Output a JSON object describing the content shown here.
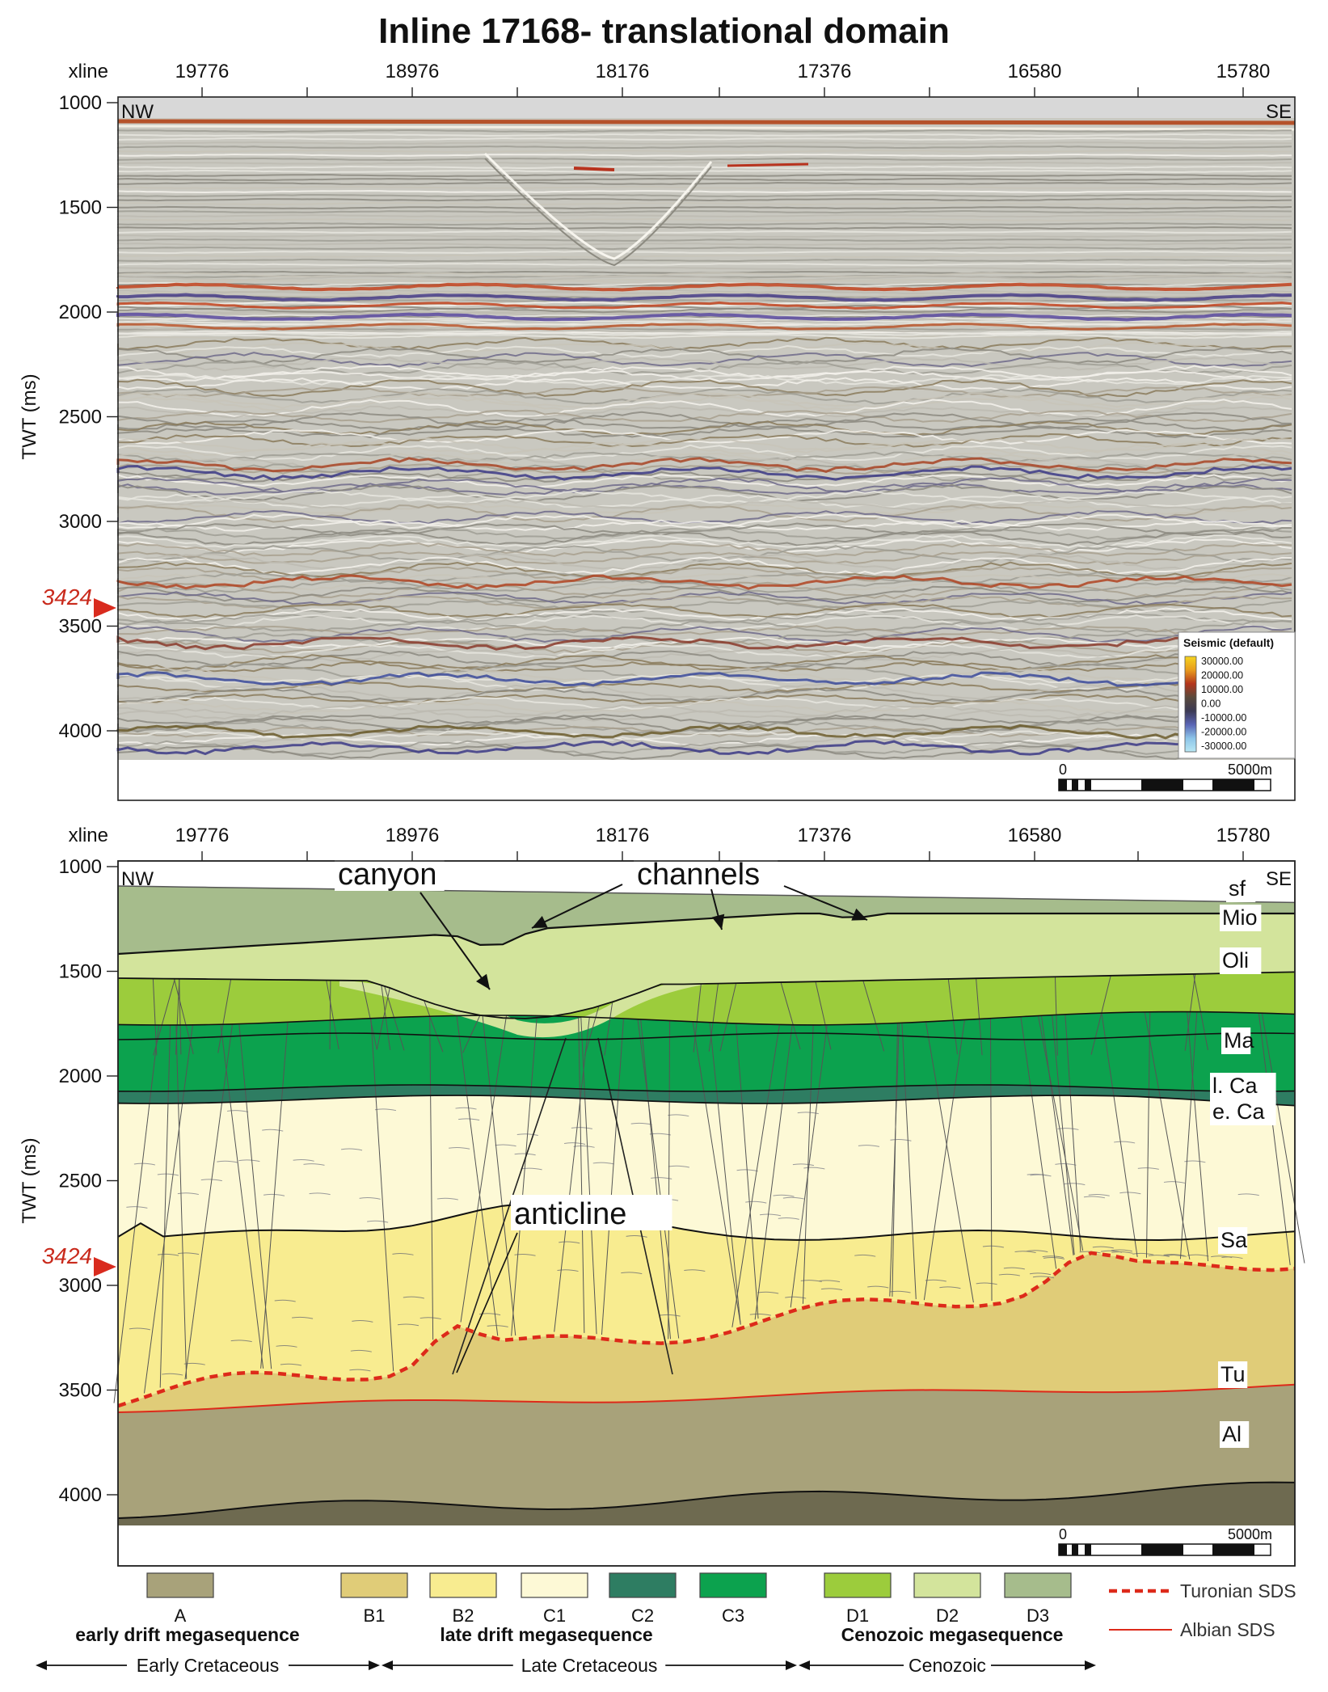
{
  "title": "Inline 17168- translational domain",
  "colors": {
    "A": "#a8a27a",
    "B1": "#e0cc78",
    "B2": "#f8ec90",
    "C1": "#fdf9d6",
    "C2": "#2e7d62",
    "C3": "#0ca24e",
    "D1": "#9ccc3c",
    "D2": "#d3e49c",
    "D3": "#a6bc8c",
    "turonian": "#dd2a1a",
    "albian": "#dd2a1a",
    "bottom_dark": "#6e6a50"
  },
  "axes": {
    "xline_label": "xline",
    "xline_ticks": [
      "19776",
      "18976",
      "18176",
      "17376",
      "16580",
      "15780"
    ],
    "y_label": "TWT (ms)",
    "y_ticks": [
      "1000",
      "1500",
      "2000",
      "2500",
      "3000",
      "3500",
      "4000"
    ],
    "marker_value": "3424",
    "nw_label": "NW",
    "se_label": "SE"
  },
  "scale_bar": {
    "start": "0",
    "end": "5000m"
  },
  "seismic_legend": {
    "title": "Seismic (default)",
    "values": [
      "30000.00",
      "20000.00",
      "10000.00",
      "0.00",
      "-10000.00",
      "-20000.00",
      "-30000.00"
    ]
  },
  "interpretation": {
    "annotations": {
      "canyon": "canyon",
      "channels": "channels",
      "anticline": "anticline"
    },
    "horizons": [
      "sf",
      "Mio",
      "Oli",
      "Ma",
      "l. Ca",
      "e. Ca",
      "Sa",
      "Tu",
      "Al"
    ]
  },
  "units_legend": [
    {
      "code": "A",
      "color_key": "A"
    },
    {
      "code": "B1",
      "color_key": "B1"
    },
    {
      "code": "B2",
      "color_key": "B2"
    },
    {
      "code": "C1",
      "color_key": "C1"
    },
    {
      "code": "C2",
      "color_key": "C2"
    },
    {
      "code": "C3",
      "color_key": "C3"
    },
    {
      "code": "D1",
      "color_key": "D1"
    },
    {
      "code": "D2",
      "color_key": "D2"
    },
    {
      "code": "D3",
      "color_key": "D3"
    }
  ],
  "megasequences": {
    "early": "early drift megasequence",
    "late": "late drift megasequence",
    "cenozoic": "Cenozoic megasequence"
  },
  "periods": {
    "early": "Early Cretaceous",
    "late": "Late Cretaceous",
    "cenozoic": "Cenozoic"
  },
  "line_legend": {
    "turonian": "Turonian SDS",
    "albian": "Albian SDS"
  }
}
